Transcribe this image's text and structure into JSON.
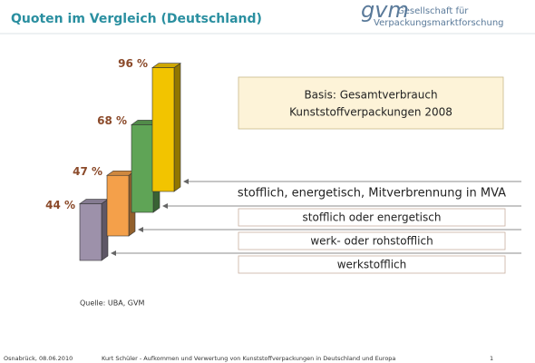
{
  "header": {
    "title": "Quoten im Vergleich (Deutschland)",
    "logo": "gvm",
    "logo_lines": [
      "Gesellschaft für",
      "Verpackungsmarktforschung"
    ]
  },
  "chart_data": {
    "type": "bar",
    "categories": [
      "werkstofflich",
      "werk- oder rohstofflich",
      "stofflich oder energetisch",
      "stofflich, energetisch, Mitverbrennung in MVA"
    ],
    "values": [
      44,
      47,
      68,
      96
    ],
    "value_labels": [
      "44 %",
      "47 %",
      "68 %",
      "96 %"
    ],
    "colors": [
      "#9d91aa",
      "#f4a04a",
      "#5fa456",
      "#f2c400"
    ],
    "annotation": [
      "Basis: Gesamtverbrauch",
      "Kunststoffverpackungen 2008"
    ],
    "source": "Quelle: UBA, GVM"
  },
  "footer": {
    "left": "Osnabrück, 08.06.2010",
    "center": "Kurt Schüler - Aufkommen und Verwertung von Kunststoffverpackungen in Deutschland und Europa",
    "page": "1"
  }
}
